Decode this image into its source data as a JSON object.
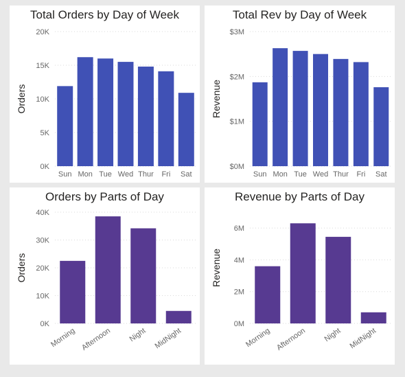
{
  "chart_data": [
    {
      "type": "bar",
      "title": "Total Orders by Day of Week",
      "xlabel": "",
      "ylabel": "Orders",
      "categories": [
        "Sun",
        "Mon",
        "Tue",
        "Wed",
        "Thur",
        "Fri",
        "Sat"
      ],
      "values": [
        11900,
        16200,
        16000,
        15500,
        14800,
        14100,
        10900
      ],
      "ylim": [
        0,
        20000
      ],
      "yticks": [
        0,
        5000,
        10000,
        15000,
        20000
      ],
      "ytick_labels": [
        "0K",
        "5K",
        "10K",
        "15K",
        "20K"
      ],
      "bar_color": "#4051b5",
      "rotate_x": false,
      "grid": true
    },
    {
      "type": "bar",
      "title": "Total Rev by Day of Week",
      "xlabel": "",
      "ylabel": "Revenue",
      "categories": [
        "Sun",
        "Mon",
        "Tue",
        "Wed",
        "Thur",
        "Fri",
        "Sat"
      ],
      "values": [
        1870000,
        2630000,
        2570000,
        2500000,
        2390000,
        2320000,
        1760000
      ],
      "ylim": [
        0,
        3000000
      ],
      "yticks": [
        0,
        1000000,
        2000000,
        3000000
      ],
      "ytick_labels": [
        "$0M",
        "$1M",
        "$2M",
        "$3M"
      ],
      "bar_color": "#4051b5",
      "rotate_x": false,
      "grid": true
    },
    {
      "type": "bar",
      "title": "Orders by Parts of Day",
      "xlabel": "",
      "ylabel": "Orders",
      "categories": [
        "Morning",
        "Afternoon",
        "Night",
        "MidNight"
      ],
      "values": [
        22500,
        38500,
        34200,
        4500
      ],
      "ylim": [
        0,
        40000
      ],
      "yticks": [
        0,
        10000,
        20000,
        30000,
        40000
      ],
      "ytick_labels": [
        "0K",
        "10K",
        "20K",
        "30K",
        "40K"
      ],
      "bar_color": "#573a91",
      "rotate_x": true,
      "grid": true
    },
    {
      "type": "bar",
      "title": "Revenue by Parts of Day",
      "xlabel": "",
      "ylabel": "Revenue",
      "categories": [
        "Morning",
        "Afternoon",
        "Night",
        "MidNight"
      ],
      "values": [
        3600000,
        6300000,
        5450000,
        700000
      ],
      "ylim": [
        0,
        7000000
      ],
      "yticks": [
        0,
        2000000,
        4000000,
        6000000
      ],
      "ytick_labels": [
        "0M",
        "2M",
        "4M",
        "6M"
      ],
      "bar_color": "#573a91",
      "rotate_x": true,
      "grid": true
    }
  ]
}
